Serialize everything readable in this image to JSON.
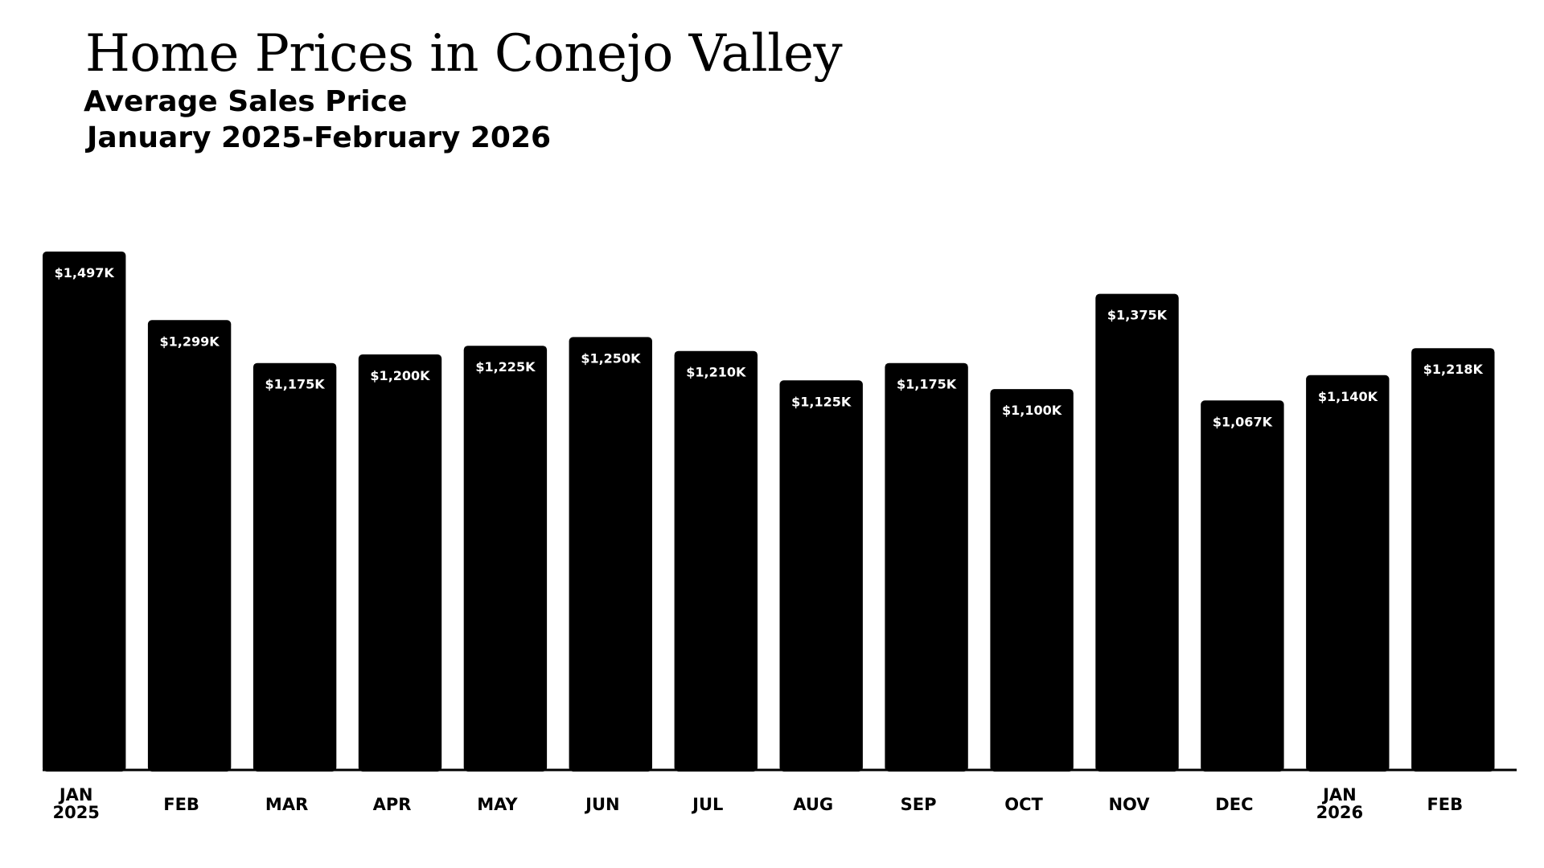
{
  "title": "Home Prices in Conejo Valley",
  "subtitle": "Average Sales Price",
  "period": "January 2025-February 2026",
  "colors": {
    "bar": "#000000",
    "bar_label": "#ffffff",
    "background": "#ffffff"
  },
  "chart_data": {
    "type": "bar",
    "title": "Home Prices in Conejo Valley",
    "subtitle": "Average Sales Price",
    "xlabel": "",
    "ylabel": "",
    "grid": false,
    "categories": [
      "JAN 2025",
      "FEB",
      "MAR",
      "APR",
      "MAY",
      "JUN",
      "JUL",
      "AUG",
      "SEP",
      "OCT",
      "NOV",
      "DEC",
      "JAN 2026",
      "FEB"
    ],
    "category_lines": [
      [
        "JAN",
        "2025"
      ],
      [
        "FEB"
      ],
      [
        "MAR"
      ],
      [
        "APR"
      ],
      [
        "MAY"
      ],
      [
        "JUN"
      ],
      [
        "JUL"
      ],
      [
        "AUG"
      ],
      [
        "SEP"
      ],
      [
        "OCT"
      ],
      [
        "NOV"
      ],
      [
        "DEC"
      ],
      [
        "JAN",
        "2026"
      ],
      [
        "FEB"
      ]
    ],
    "values": [
      1497,
      1299,
      1175,
      1200,
      1225,
      1250,
      1210,
      1125,
      1175,
      1100,
      1375,
      1067,
      1140,
      1218
    ],
    "value_labels": [
      "$1,497K",
      "$1,299K",
      "$1,175K",
      "$1,200K",
      "$1,225K",
      "$1,250K",
      "$1,210K",
      "$1,125K",
      "$1,175K",
      "$1,100K",
      "$1,375K",
      "$1,067K",
      "$1,140K",
      "$1,218K"
    ],
    "unit": "thousands USD",
    "ylim": [
      0,
      1497
    ]
  }
}
